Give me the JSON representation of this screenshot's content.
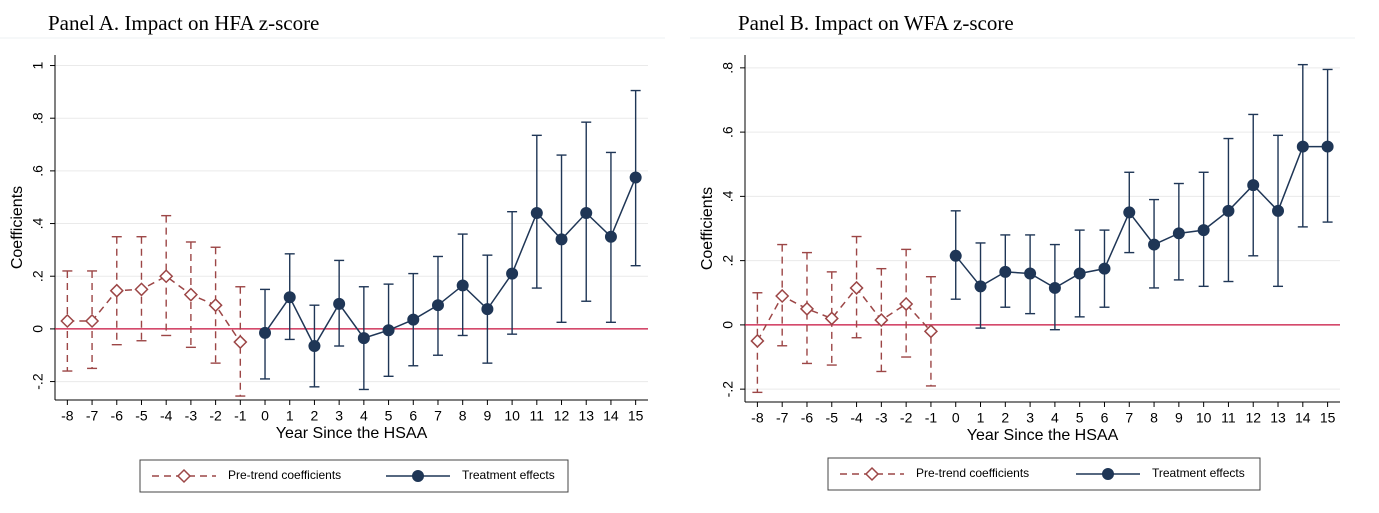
{
  "chart_data": [
    {
      "type": "line",
      "title": "Panel A. Impact on HFA z-score",
      "xlabel": "Year Since the HSAA",
      "ylabel": "Coefficients",
      "xlim": [
        -8.5,
        15.5
      ],
      "xticks": [
        -8,
        -7,
        -6,
        -5,
        -4,
        -3,
        -2,
        -1,
        0,
        1,
        2,
        3,
        4,
        5,
        6,
        7,
        8,
        9,
        10,
        11,
        12,
        13,
        14,
        15
      ],
      "ylim": [
        -0.27,
        1.04
      ],
      "yticks": [
        {
          "value": -0.2,
          "label": "-.2"
        },
        0,
        {
          "value": 0.2,
          "label": ".2"
        },
        {
          "value": 0.4,
          "label": ".4"
        },
        {
          "value": 0.6,
          "label": ".6"
        },
        {
          "value": 0.8,
          "label": ".8"
        },
        1
      ],
      "grid": true,
      "refline": 0,
      "refline_color": "#c8103c",
      "series": [
        {
          "name": "Pre-trend coefficients",
          "color": "#9c4646",
          "dashed": true,
          "marker": "diamond-open",
          "x": [
            -8,
            -7,
            -6,
            -5,
            -4,
            -3,
            -2,
            -1
          ],
          "values": [
            0.03,
            0.03,
            0.145,
            0.15,
            0.2,
            0.13,
            0.09,
            -0.05
          ],
          "upper": [
            0.22,
            0.22,
            0.35,
            0.35,
            0.43,
            0.33,
            0.31,
            0.16
          ],
          "lower": [
            -0.16,
            -0.15,
            -0.06,
            -0.045,
            -0.025,
            -0.07,
            -0.13,
            -0.255
          ]
        },
        {
          "name": "Treatment effects",
          "color": "#1f3656",
          "dashed": false,
          "marker": "circle",
          "x": [
            0,
            1,
            2,
            3,
            4,
            5,
            6,
            7,
            8,
            9,
            10,
            11,
            12,
            13,
            14,
            15
          ],
          "values": [
            -0.015,
            0.12,
            -0.065,
            0.095,
            -0.035,
            -0.005,
            0.035,
            0.09,
            0.165,
            0.075,
            0.21,
            0.44,
            0.34,
            0.44,
            0.35,
            0.575
          ],
          "upper": [
            0.15,
            0.285,
            0.09,
            0.26,
            0.16,
            0.17,
            0.21,
            0.275,
            0.36,
            0.28,
            0.445,
            0.735,
            0.66,
            0.785,
            0.67,
            0.905
          ],
          "lower": [
            -0.19,
            -0.04,
            -0.22,
            -0.065,
            -0.23,
            -0.18,
            -0.14,
            -0.1,
            -0.025,
            -0.13,
            -0.02,
            0.155,
            0.025,
            0.105,
            0.025,
            0.24
          ]
        }
      ]
    },
    {
      "type": "line",
      "title": "Panel B. Impact on WFA z-score",
      "xlabel": "Year Since the HSAA",
      "ylabel": "Coefficients",
      "xlim": [
        -8.5,
        15.5
      ],
      "xticks": [
        -8,
        -7,
        -6,
        -5,
        -4,
        -3,
        -2,
        -1,
        0,
        1,
        2,
        3,
        4,
        5,
        6,
        7,
        8,
        9,
        10,
        11,
        12,
        13,
        14,
        15
      ],
      "ylim": [
        -0.24,
        0.84
      ],
      "yticks": [
        {
          "value": -0.2,
          "label": "-.2"
        },
        0,
        {
          "value": 0.2,
          "label": ".2"
        },
        {
          "value": 0.4,
          "label": ".4"
        },
        {
          "value": 0.6,
          "label": ".6"
        },
        {
          "value": 0.8,
          "label": ".8"
        }
      ],
      "grid": true,
      "refline": 0,
      "refline_color": "#c8103c",
      "series": [
        {
          "name": "Pre-trend coefficients",
          "color": "#9c4646",
          "dashed": true,
          "marker": "diamond-open",
          "x": [
            -8,
            -7,
            -6,
            -5,
            -4,
            -3,
            -2,
            -1
          ],
          "values": [
            -0.05,
            0.09,
            0.05,
            0.02,
            0.115,
            0.015,
            0.065,
            -0.02
          ],
          "upper": [
            0.1,
            0.25,
            0.225,
            0.165,
            0.275,
            0.175,
            0.235,
            0.15
          ],
          "lower": [
            -0.21,
            -0.065,
            -0.12,
            -0.125,
            -0.04,
            -0.145,
            -0.1,
            -0.19
          ]
        },
        {
          "name": "Treatment effects",
          "color": "#1f3656",
          "dashed": false,
          "marker": "circle",
          "x": [
            0,
            1,
            2,
            3,
            4,
            5,
            6,
            7,
            8,
            9,
            10,
            11,
            12,
            13,
            14,
            15
          ],
          "values": [
            0.215,
            0.12,
            0.165,
            0.16,
            0.115,
            0.16,
            0.175,
            0.35,
            0.25,
            0.285,
            0.295,
            0.355,
            0.435,
            0.355,
            0.555,
            0.555
          ],
          "upper": [
            0.355,
            0.255,
            0.28,
            0.28,
            0.25,
            0.295,
            0.295,
            0.475,
            0.39,
            0.44,
            0.475,
            0.58,
            0.655,
            0.59,
            0.81,
            0.795
          ],
          "lower": [
            0.08,
            -0.01,
            0.055,
            0.035,
            -0.015,
            0.025,
            0.055,
            0.225,
            0.115,
            0.14,
            0.12,
            0.135,
            0.215,
            0.12,
            0.305,
            0.32
          ]
        }
      ]
    }
  ]
}
